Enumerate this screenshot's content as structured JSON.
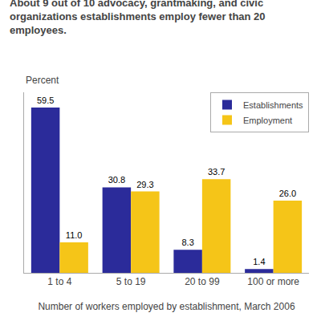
{
  "chart_data": {
    "type": "bar",
    "title": "About 9 out of 10 advocacy, grantmaking, and civic\norganizations establishments employ fewer than 20\nemployees.",
    "ylabel": "Percent",
    "xlabel": "Number of workers employed by establishment, March 2006",
    "categories": [
      "1 to 4",
      "5 to 19",
      "20 to 99",
      "100 or more"
    ],
    "series": [
      {
        "name": "Establishments",
        "color": "#2b2b9a",
        "values": [
          59.5,
          30.8,
          8.3,
          1.4
        ]
      },
      {
        "name": "Employment",
        "color": "#f5c518",
        "values": [
          11.0,
          29.3,
          33.7,
          26.0
        ],
        "value_labels": [
          "11.0",
          "29.3",
          "33.7",
          "26.0"
        ]
      }
    ],
    "ylim": [
      0,
      65
    ],
    "grid": false,
    "legend": "upper right",
    "data_labels": true,
    "tick_labels": "x"
  }
}
